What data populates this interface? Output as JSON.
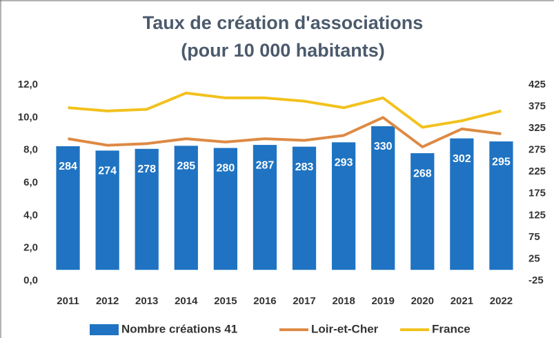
{
  "chart_data": {
    "type": "bar-line",
    "title": "Taux de création d'associations",
    "subtitle": "(pour 10 000 habitants)",
    "categories": [
      "2011",
      "2012",
      "2013",
      "2014",
      "2015",
      "2016",
      "2017",
      "2018",
      "2019",
      "2020",
      "2021",
      "2022"
    ],
    "series": [
      {
        "name": "Nombre créations 41",
        "type": "bar",
        "axis": "y2",
        "color": "#1f73c2",
        "values": [
          284,
          274,
          278,
          285,
          280,
          287,
          283,
          293,
          330,
          268,
          302,
          295
        ]
      },
      {
        "name": "Loir-et-Cher",
        "type": "line",
        "color": "#dd8a45",
        "values": [
          8.7,
          8.3,
          8.4,
          8.7,
          8.5,
          8.7,
          8.6,
          8.9,
          10.0,
          8.2,
          9.3,
          9.0
        ]
      },
      {
        "name": "France",
        "type": "line",
        "color": "#f2c11c",
        "values": [
          10.6,
          10.4,
          10.5,
          11.5,
          11.2,
          11.2,
          11.0,
          10.6,
          11.2,
          9.4,
          9.8,
          10.4
        ]
      }
    ],
    "ylim": [
      0,
      12
    ],
    "yticks": [
      {
        "value": 0,
        "label": "0,0"
      },
      {
        "value": 2,
        "label": "2,0"
      },
      {
        "value": 4,
        "label": "4,0"
      },
      {
        "value": 6,
        "label": "6,0"
      },
      {
        "value": 8,
        "label": "8,0"
      },
      {
        "value": 10,
        "label": "10,0"
      },
      {
        "value": 12,
        "label": "12,0"
      }
    ],
    "y2lim": [
      -25,
      425
    ],
    "y2ticks": [
      -25,
      25,
      75,
      125,
      175,
      225,
      275,
      325,
      375,
      425
    ],
    "legend": "bottom"
  }
}
